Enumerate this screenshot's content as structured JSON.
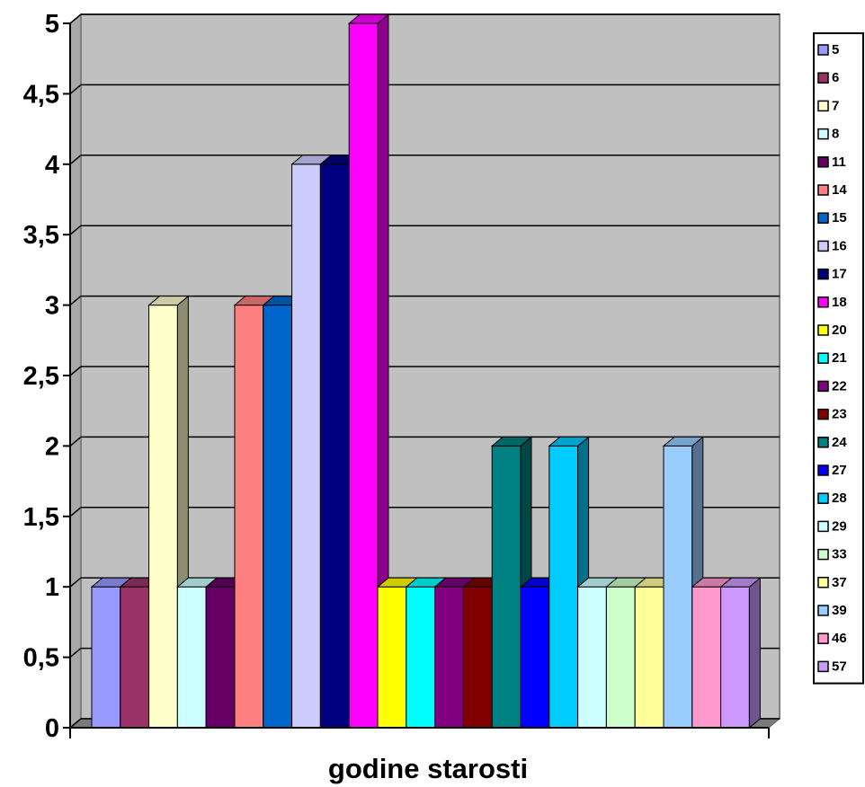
{
  "chart_data": {
    "type": "bar",
    "title": "",
    "xlabel": "godine starosti",
    "ylabel": "",
    "ylim": [
      0,
      5
    ],
    "yticks": [
      "0",
      "0,5",
      "1",
      "1,5",
      "2",
      "2,5",
      "3",
      "3,5",
      "4",
      "4,5",
      "5"
    ],
    "grid": true,
    "legend_position": "right",
    "categories": [
      ""
    ],
    "series": [
      {
        "name": "5",
        "values": [
          1
        ],
        "color": "#9999ff"
      },
      {
        "name": "6",
        "values": [
          1
        ],
        "color": "#993366"
      },
      {
        "name": "7",
        "values": [
          3
        ],
        "color": "#ffffcc"
      },
      {
        "name": "8",
        "values": [
          1
        ],
        "color": "#ccffff"
      },
      {
        "name": "11",
        "values": [
          1
        ],
        "color": "#660066"
      },
      {
        "name": "14",
        "values": [
          3
        ],
        "color": "#ff8080"
      },
      {
        "name": "15",
        "values": [
          3
        ],
        "color": "#0066cc"
      },
      {
        "name": "16",
        "values": [
          4
        ],
        "color": "#ccccff"
      },
      {
        "name": "17",
        "values": [
          4
        ],
        "color": "#000080"
      },
      {
        "name": "18",
        "values": [
          5
        ],
        "color": "#ff00ff"
      },
      {
        "name": "20",
        "values": [
          1
        ],
        "color": "#ffff00"
      },
      {
        "name": "21",
        "values": [
          1
        ],
        "color": "#00ffff"
      },
      {
        "name": "22",
        "values": [
          1
        ],
        "color": "#800080"
      },
      {
        "name": "23",
        "values": [
          1
        ],
        "color": "#800000"
      },
      {
        "name": "24",
        "values": [
          2
        ],
        "color": "#008080"
      },
      {
        "name": "27",
        "values": [
          1
        ],
        "color": "#0000ff"
      },
      {
        "name": "28",
        "values": [
          2
        ],
        "color": "#00ccff"
      },
      {
        "name": "29",
        "values": [
          1
        ],
        "color": "#ccffff"
      },
      {
        "name": "33",
        "values": [
          1
        ],
        "color": "#ccffcc"
      },
      {
        "name": "37",
        "values": [
          1
        ],
        "color": "#ffff99"
      },
      {
        "name": "39",
        "values": [
          2
        ],
        "color": "#99ccff"
      },
      {
        "name": "46",
        "values": [
          1
        ],
        "color": "#ff99cc"
      },
      {
        "name": "57",
        "values": [
          1
        ],
        "color": "#cc99ff"
      }
    ],
    "plot_background": "#c0c0c0"
  }
}
